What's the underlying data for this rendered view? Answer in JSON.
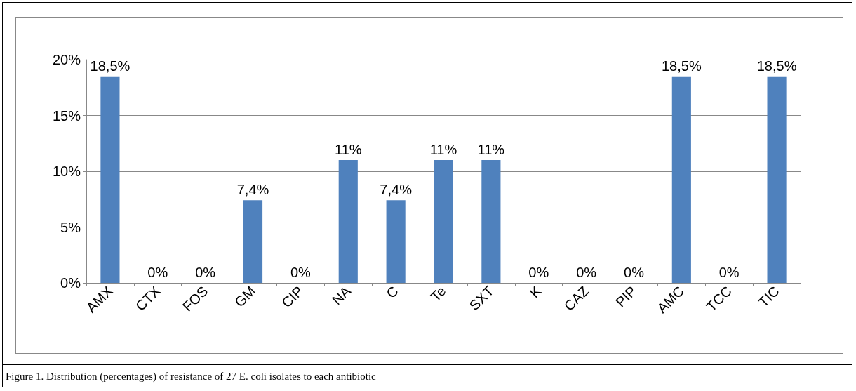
{
  "chart_data": {
    "type": "bar",
    "categories": [
      "AMX",
      "CTX",
      "FOS",
      "GM",
      "CIP",
      "NA",
      "C",
      "Te",
      "SXT",
      "K",
      "CAZ",
      "PIP",
      "AMC",
      "TCC",
      "TIC"
    ],
    "values": [
      18.5,
      0,
      0,
      7.4,
      0,
      11,
      7.4,
      11,
      11,
      0,
      0,
      0,
      18.5,
      0,
      18.5
    ],
    "value_labels": [
      "18,5%",
      "0%",
      "0%",
      "7,4%",
      "0%",
      "11%",
      "7,4%",
      "11%",
      "11%",
      "0%",
      "0%",
      "0%",
      "18,5%",
      "0%",
      "18,5%"
    ],
    "color": "#4f81bd",
    "ylim": [
      0,
      20
    ],
    "yticks": [
      {
        "value": 0,
        "label": "0%"
      },
      {
        "value": 5,
        "label": "5%"
      },
      {
        "value": 10,
        "label": "10%"
      },
      {
        "value": 15,
        "label": "15%"
      },
      {
        "value": 20,
        "label": "20%"
      }
    ],
    "grid": "y",
    "annotations": [
      "Figure 1. Distribution (percentages) of resistance of 27 E. coli isolates to each antibiotic"
    ]
  }
}
